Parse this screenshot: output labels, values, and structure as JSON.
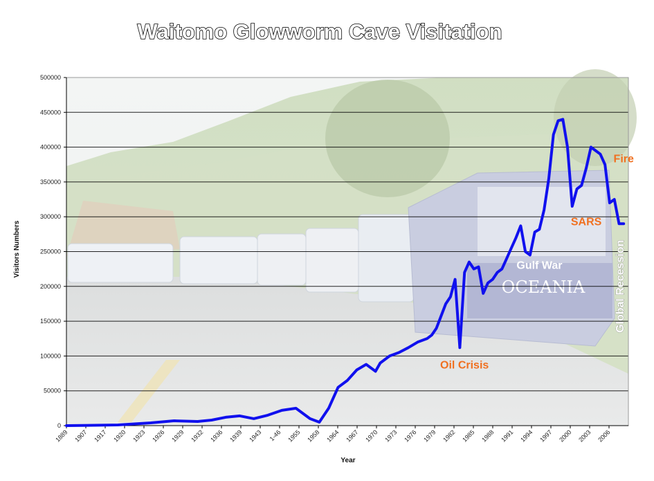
{
  "chart_data": {
    "type": "line",
    "title": "Waitomo Glowworm Cave Visitation",
    "xlabel": "Year",
    "ylabel": "Visitors Numbers",
    "ylim": [
      0,
      500000
    ],
    "yticks": [
      0,
      50000,
      100000,
      150000,
      200000,
      250000,
      300000,
      350000,
      400000,
      450000,
      500000
    ],
    "xlim": [
      1889,
      2009
    ],
    "xticks": [
      "1889",
      "1907",
      "1917",
      "1920",
      "1923",
      "1926",
      "1929",
      "1932",
      "1936",
      "1939",
      "1943",
      "1-46",
      "1955",
      "1958",
      "1964",
      "1967",
      "1970",
      "1973",
      "1976",
      "1979",
      "1982",
      "1985",
      "1988",
      "1991",
      "1994",
      "1997",
      "2000",
      "2003",
      "2006"
    ],
    "grid": true,
    "line_color": "#1010ee",
    "annotation_color": "#f07020",
    "series": [
      {
        "x": [
          1889,
          1900,
          1907,
          1912,
          1917,
          1920,
          1923,
          1926,
          1929,
          1932,
          1935,
          1938,
          1941,
          1943,
          1945,
          1947,
          1949,
          1951,
          1953,
          1955,
          1956,
          1958,
          1960,
          1962,
          1964,
          1966,
          1967,
          1968,
          1970,
          1971,
          1972,
          1973,
          1974,
          1975,
          1976,
          1977,
          1978,
          1979,
          1980,
          1981,
          1982,
          1983,
          1984,
          1985,
          1986,
          1987,
          1988,
          1989,
          1990,
          1991,
          1992,
          1993,
          1994,
          1995,
          1996,
          1997,
          1998,
          1999,
          2000,
          2001,
          2002,
          2003,
          2004,
          2005,
          2006,
          2007,
          2008
        ],
        "y": [
          0,
          1000,
          4000,
          7000,
          6000,
          8000,
          12000,
          14000,
          10000,
          15000,
          22000,
          25000,
          10000,
          5000,
          25000,
          55000,
          65000,
          80000,
          88000,
          78000,
          90000,
          100000,
          105000,
          112000,
          120000,
          125000,
          130000,
          140000,
          175000,
          185000,
          210000,
          112000,
          220000,
          235000,
          225000,
          228000,
          190000,
          205000,
          210000,
          220000,
          225000,
          240000,
          255000,
          270000,
          287000,
          250000,
          245000,
          278000,
          282000,
          310000,
          355000,
          418000,
          438000,
          440000,
          400000,
          315000,
          340000,
          345000,
          370000,
          400000,
          395000,
          390000,
          375000,
          320000,
          325000,
          290000,
          290000
        ]
      }
    ],
    "annotations": [
      {
        "text": "Oil Crisis",
        "x": 1974,
        "y": 82000
      },
      {
        "text": "Gulf War",
        "x": 1990,
        "y": 225000
      },
      {
        "text": "SARS",
        "x": 2000,
        "y": 288000
      },
      {
        "text": "Fire",
        "x": 2008,
        "y": 378000
      },
      {
        "text": "Global Recession",
        "x": 2008,
        "y": 200000,
        "vertical": true
      }
    ]
  }
}
